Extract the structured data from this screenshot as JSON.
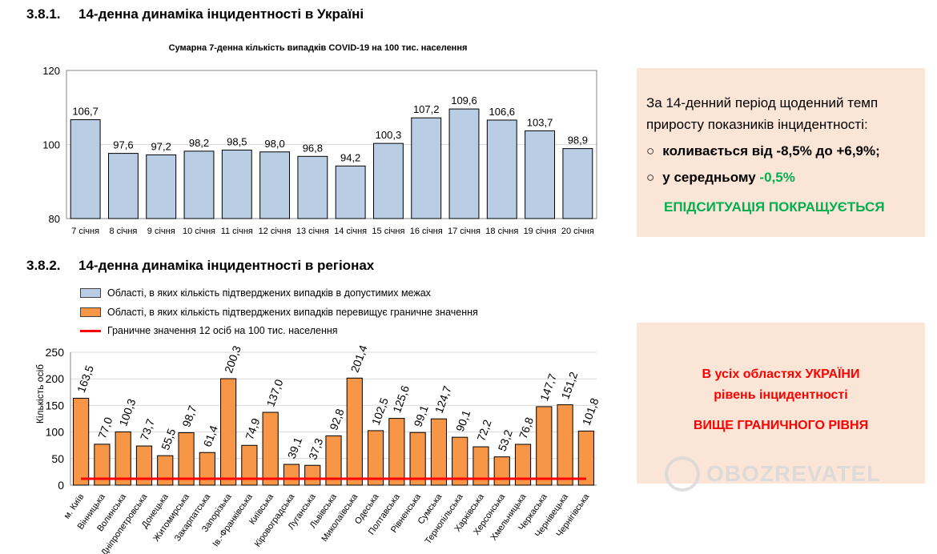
{
  "section1": {
    "number": "3.8.1.",
    "title": "14-денна динаміка інцидентності в Україні"
  },
  "section2": {
    "number": "3.8.2.",
    "title": "14-денна динаміка інцидентності в регіонах"
  },
  "chart_data": [
    {
      "type": "bar",
      "title": "Сумарна 7-денна кількість випадків COVID-19 на 100 тис. населення",
      "categories": [
        "7 січня",
        "8 січня",
        "9 січня",
        "10 січня",
        "11 січня",
        "12 січня",
        "13 січня",
        "14 січня",
        "15 січня",
        "16 січня",
        "17 січня",
        "18 січня",
        "19 січня",
        "20 січня"
      ],
      "values": [
        106.7,
        97.6,
        97.2,
        98.2,
        98.5,
        98.0,
        96.8,
        94.2,
        100.3,
        107.2,
        109.6,
        106.6,
        103.7,
        98.9
      ],
      "labels": [
        "106,7",
        "97,6",
        "97,2",
        "98,2",
        "98,5",
        "98,0",
        "96,8",
        "94,2",
        "100,3",
        "107,2",
        "109,6",
        "106,6",
        "103,7",
        "98,9"
      ],
      "ylim": [
        80,
        120
      ],
      "yticks": [
        "80",
        "100",
        "120"
      ],
      "color": "#b9cde5"
    },
    {
      "type": "bar",
      "title": "",
      "ylabel": "Кількість осіб",
      "categories": [
        "м. Київ",
        "Вінницька",
        "Волинська",
        "Дніпропетровська",
        "Донецька",
        "Житомирська",
        "Закарпатська",
        "Запорізька",
        "Ів.-Франківська",
        "Київська",
        "Кіровоградська",
        "Луганська",
        "Львівська",
        "Миколаївська",
        "Одеська",
        "Полтавська",
        "Рівненська",
        "Сумська",
        "Тернопільська",
        "Харківська",
        "Херсонська",
        "Хмельницька",
        "Черкаська",
        "Чернівецька",
        "Чернігівська"
      ],
      "values": [
        163.5,
        77.0,
        100.3,
        73.7,
        55.5,
        98.7,
        61.4,
        200.3,
        74.9,
        137.0,
        39.1,
        37.3,
        92.8,
        201.4,
        102.5,
        125.6,
        99.1,
        124.7,
        90.1,
        72.2,
        53.2,
        76.8,
        147.7,
        151.2,
        101.8
      ],
      "labels": [
        "163,5",
        "77,0",
        "100,3",
        "73,7",
        "55,5",
        "98,7",
        "61,4",
        "200,3",
        "74,9",
        "137,0",
        "39,1",
        "37,3",
        "92,8",
        "201,4",
        "102,5",
        "125,6",
        "99,1",
        "124,7",
        "90,1",
        "72,2",
        "53,2",
        "76,8",
        "147,7",
        "151,2",
        "101,8"
      ],
      "ylim": [
        0,
        250
      ],
      "yticks": [
        "0",
        "50",
        "100",
        "150",
        "200",
        "250"
      ],
      "threshold": 12,
      "color": "#f79646",
      "threshold_color": "#ff0000",
      "legend": [
        "Області, в яких кількість підтверджених випадків в допустимих межах",
        "Області, в яких кількість підтверджених випадків перевищує граничне значення",
        "Граничне значення 12 осіб на 100 тис. населення"
      ]
    }
  ],
  "box1": {
    "line1": "За 14-денний період щоденний темп",
    "line2": "приросту показників інцидентності:",
    "bullet1": "коливається від -8,5% до +6,9%;",
    "bullet2_a": "у середньому ",
    "bullet2_b": "-0,5%",
    "status": "ЕПІДСИТУАЦІЯ ПОКРАЩУЄТЬСЯ",
    "bullet": "○"
  },
  "box2": {
    "line1": "В усіх областях УКРАЇНИ",
    "line2": "рівень інцидентності",
    "line3": "ВИЩЕ ГРАНИЧНОГО РІВНЯ"
  },
  "watermark": "OBOZREVATEL"
}
